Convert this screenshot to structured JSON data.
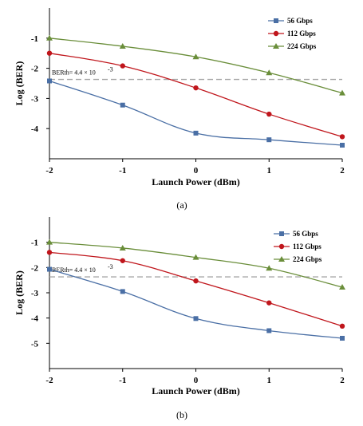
{
  "chart_data": [
    {
      "type": "line",
      "caption": "(a)",
      "xlabel": "Launch Power (dBm)",
      "ylabel": "Log (BER)",
      "xlim": [
        -2,
        2
      ],
      "ylim": [
        -5,
        0
      ],
      "x_ticks": [
        "-2",
        "-1",
        "0",
        "1",
        "2"
      ],
      "y_ticks": [
        "-1",
        "-2",
        "-3",
        "-4"
      ],
      "x": [
        -2,
        -1,
        0,
        1,
        2
      ],
      "threshold": {
        "value": -2.37,
        "label": "BERth= 4.4 × 10",
        "label_exp": "-3"
      },
      "series": [
        {
          "name": "56   Gbps",
          "color": "#4a6fa5",
          "marker": "square",
          "values": [
            -2.42,
            -3.22,
            -4.15,
            -4.37,
            -4.55
          ]
        },
        {
          "name": "112  Gbps",
          "color": "#c0161c",
          "marker": "circle",
          "values": [
            -1.5,
            -1.92,
            -2.65,
            -3.52,
            -4.27
          ]
        },
        {
          "name": "224  Gbps",
          "color": "#6a8e3a",
          "marker": "triangle",
          "values": [
            -1.0,
            -1.27,
            -1.62,
            -2.15,
            -2.82
          ]
        }
      ],
      "legend_position": "top-right"
    },
    {
      "type": "line",
      "caption": "(b)",
      "xlabel": "Launch Power (dBm)",
      "ylabel": "Log (BER)",
      "xlim": [
        -2,
        2
      ],
      "ylim": [
        -6,
        0
      ],
      "x_ticks": [
        "-2",
        "-1",
        "0",
        "1",
        "2"
      ],
      "y_ticks": [
        "-1",
        "-2",
        "-3",
        "-4",
        "-5"
      ],
      "x": [
        -2,
        -1,
        0,
        1,
        2
      ],
      "threshold": {
        "value": -2.37,
        "label": "BERth= 4.4 × 10",
        "label_exp": "-3"
      },
      "series": [
        {
          "name": "56   Gbps",
          "color": "#4a6fa5",
          "marker": "square",
          "values": [
            -2.07,
            -2.95,
            -4.02,
            -4.5,
            -4.8
          ]
        },
        {
          "name": "112  Gbps",
          "color": "#c0161c",
          "marker": "circle",
          "values": [
            -1.4,
            -1.73,
            -2.53,
            -3.4,
            -4.32
          ]
        },
        {
          "name": "224  Gbps",
          "color": "#6a8e3a",
          "marker": "triangle",
          "values": [
            -1.0,
            -1.23,
            -1.6,
            -2.03,
            -2.78
          ]
        }
      ],
      "legend_position": "top-right"
    }
  ]
}
